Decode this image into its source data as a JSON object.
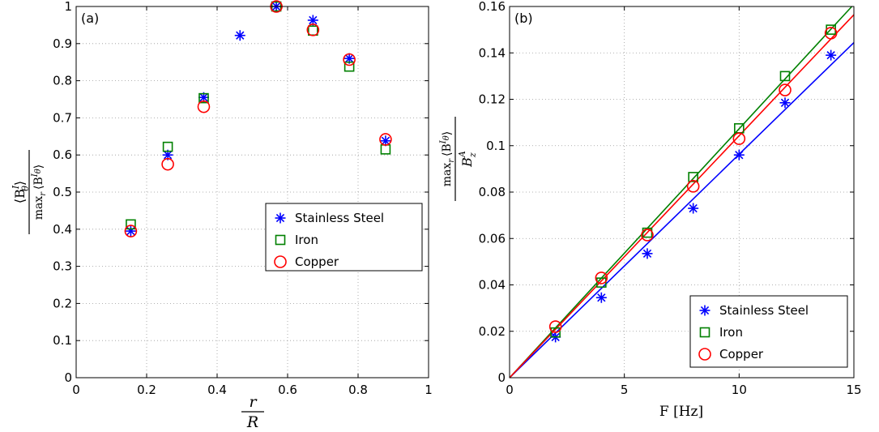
{
  "chart_data": [
    {
      "type": "scatter",
      "panel_label": "(a)",
      "xlabel": {
        "num": "r",
        "den": "R"
      },
      "ylabel": {
        "num": "⟨B",
        "num_sup": "I",
        "num_sub": "θ",
        "num_close": "⟩",
        "den": "max",
        "den_sub": "r",
        "den_rest": "⟨B",
        "den_sup": "I",
        "den_sub2": "θ",
        "den_close": "⟩"
      },
      "xlim": [
        0,
        1
      ],
      "ylim": [
        0,
        1
      ],
      "xticks": [
        "0",
        "0.2",
        "0.4",
        "0.6",
        "0.8",
        "1"
      ],
      "yticks": [
        "0",
        "0.1",
        "0.2",
        "0.3",
        "0.4",
        "0.5",
        "0.6",
        "0.7",
        "0.8",
        "0.9",
        "1"
      ],
      "grid": true,
      "legend_position": "right-middle",
      "series": [
        {
          "name": "Stainless Steel",
          "marker": "asterisk",
          "color": "#0000ff",
          "x": [
            0.155,
            0.26,
            0.362,
            0.465,
            0.568,
            0.672,
            0.775,
            0.878
          ],
          "y": [
            0.395,
            0.6,
            0.755,
            0.922,
            1.0,
            0.963,
            0.86,
            0.638
          ]
        },
        {
          "name": "Iron",
          "marker": "square",
          "color": "#008000",
          "x": [
            0.155,
            0.26,
            0.362,
            0.568,
            0.672,
            0.775,
            0.878
          ],
          "y": [
            0.413,
            0.622,
            0.753,
            1.0,
            0.935,
            0.838,
            0.615
          ]
        },
        {
          "name": "Copper",
          "marker": "circle",
          "color": "#ff0000",
          "x": [
            0.155,
            0.26,
            0.362,
            0.568,
            0.672,
            0.775,
            0.878
          ],
          "y": [
            0.395,
            0.575,
            0.73,
            1.0,
            0.937,
            0.857,
            0.642
          ]
        }
      ]
    },
    {
      "type": "scatter",
      "panel_label": "(b)",
      "xlabel": {
        "text": "F [Hz]"
      },
      "ylabel": {
        "num": "max",
        "num_sub": "r",
        "num_rest": "⟨B",
        "num_sup": "I",
        "num_sub2": "θ",
        "num_close": "⟩",
        "den": "B",
        "den_sup": "A",
        "den_sub": "z"
      },
      "xlim": [
        0,
        15
      ],
      "ylim": [
        0,
        0.16
      ],
      "xticks": [
        "0",
        "5",
        "10",
        "15"
      ],
      "yticks": [
        "0",
        "0.02",
        "0.04",
        "0.06",
        "0.08",
        "0.1",
        "0.12",
        "0.14",
        "0.16"
      ],
      "grid": true,
      "legend_position": "bottom-right",
      "series": [
        {
          "name": "Stainless Steel",
          "marker": "asterisk",
          "color": "#0000ff",
          "x": [
            2,
            4,
            6,
            8,
            10,
            12,
            14
          ],
          "y": [
            0.0175,
            0.0345,
            0.0535,
            0.073,
            0.096,
            0.1185,
            0.139
          ],
          "fit_slope": 0.00963
        },
        {
          "name": "Iron",
          "marker": "square",
          "color": "#008000",
          "x": [
            2,
            4,
            6,
            8,
            10,
            12,
            14
          ],
          "y": [
            0.0195,
            0.041,
            0.0625,
            0.0865,
            0.1075,
            0.13,
            0.15
          ],
          "fit_slope": 0.01073
        },
        {
          "name": "Copper",
          "marker": "circle",
          "color": "#ff0000",
          "x": [
            2,
            4,
            6,
            8,
            10,
            12,
            14
          ],
          "y": [
            0.022,
            0.043,
            0.0615,
            0.0825,
            0.103,
            0.124,
            0.1485
          ],
          "fit_slope": 0.01043
        }
      ]
    }
  ]
}
